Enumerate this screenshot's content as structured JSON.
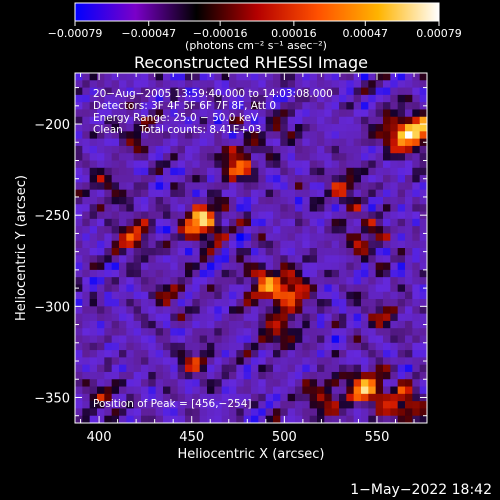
{
  "chart_data": {
    "type": "heatmap",
    "title": "Reconstructed RHESSI Image",
    "xlabel": "Heliocentric X (arcsec)",
    "ylabel": "Heliocentric Y (arcsec)",
    "xlim": [
      387,
      577
    ],
    "ylim": [
      -364,
      -172
    ],
    "x_ticks": [
      400,
      450,
      500,
      550
    ],
    "y_ticks": [
      -200,
      -250,
      -300,
      -350
    ],
    "x_tick_labels": [
      "400",
      "450",
      "500",
      "550"
    ],
    "y_tick_labels": [
      "−200",
      "−250",
      "−300",
      "−350"
    ],
    "colorbar": {
      "range": [
        -0.00079,
        0.00079
      ],
      "tick_values": [
        -0.00079,
        -0.00047,
        -0.00016,
        0.00016,
        0.00047,
        0.00079
      ],
      "tick_labels": [
        "−0.00079",
        "−0.00047",
        "−0.00016",
        "0.00016",
        "0.00047",
        "0.00079"
      ],
      "units_label": "(photons cm⁻² s⁻¹ asec⁻²)",
      "colors": [
        "#0000ff",
        "#7a00c8",
        "#000000",
        "#b40000",
        "#ff5000",
        "#ffb400",
        "#ffffff"
      ]
    },
    "annotations": [
      "20−Aug−2005 13:59:40.000 to 14:03:08.000",
      "Detectors: 3F 4F 5F 6F 7F 8F, Att 0",
      "Energy Range: 25.0 − 50.0 keV",
      "Clean     Total counts: 8.41E+03"
    ],
    "peak_label": "Position of Peak = [456,−254]",
    "sources": [
      {
        "x": 456,
        "y": -254,
        "peak": 0.00079
      },
      {
        "x": 475,
        "y": -222,
        "peak": 0.00058
      },
      {
        "x": 418,
        "y": -262,
        "peak": 0.00048
      },
      {
        "x": 573,
        "y": -205,
        "peak": 0.00065
      },
      {
        "x": 560,
        "y": -205,
        "peak": 0.00052
      },
      {
        "x": 503,
        "y": -292,
        "peak": 0.0006
      },
      {
        "x": 488,
        "y": -287,
        "peak": 0.0005
      },
      {
        "x": 545,
        "y": -345,
        "peak": 0.0007
      },
      {
        "x": 566,
        "y": -355,
        "peak": 0.00055
      },
      {
        "x": 521,
        "y": -350,
        "peak": 0.00045
      },
      {
        "x": 498,
        "y": -314,
        "peak": 0.0004
      },
      {
        "x": 533,
        "y": -235,
        "peak": 0.0004
      },
      {
        "x": 543,
        "y": -262,
        "peak": 0.00038
      },
      {
        "x": 405,
        "y": -235,
        "peak": 0.0003
      },
      {
        "x": 452,
        "y": -330,
        "peak": 0.00035
      },
      {
        "x": 402,
        "y": -350,
        "peak": 0.0003
      },
      {
        "x": 420,
        "y": -205,
        "peak": 0.00028
      },
      {
        "x": 553,
        "y": -305,
        "peak": 0.0003
      },
      {
        "x": 498,
        "y": -205,
        "peak": 0.00025
      },
      {
        "x": 438,
        "y": -292,
        "peak": 0.00025
      }
    ]
  },
  "timestamp": "1−May−2022 18:42"
}
